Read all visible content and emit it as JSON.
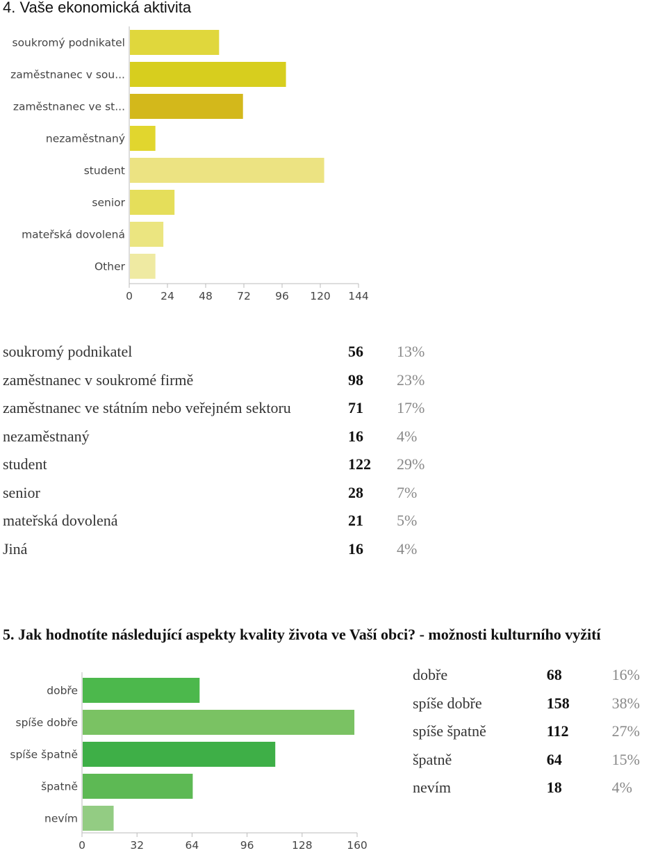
{
  "q4": {
    "title": "4. Vaše ekonomická aktivita",
    "stats": [
      {
        "label": "soukromý podnikatel",
        "count": "56",
        "percent": "13%"
      },
      {
        "label": "zaměstnanec v soukromé firmě",
        "count": "98",
        "percent": "23%"
      },
      {
        "label": "zaměstnanec ve státním nebo veřejném sektoru",
        "count": "71",
        "percent": "17%"
      },
      {
        "label": "nezaměstnaný",
        "count": "16",
        "percent": "4%"
      },
      {
        "label": "student",
        "count": "122",
        "percent": "29%"
      },
      {
        "label": "senior",
        "count": "28",
        "percent": "7%"
      },
      {
        "label": "mateřská dovolená",
        "count": "21",
        "percent": "5%"
      },
      {
        "label": "Jiná",
        "count": "16",
        "percent": "4%"
      }
    ]
  },
  "q5": {
    "title": "5. Jak hodnotíte následující aspekty kvality života ve Vaší obci? - možnosti kulturního vyžití",
    "stats": [
      {
        "label": "dobře",
        "count": "68",
        "percent": "16%"
      },
      {
        "label": "spíše dobře",
        "count": "158",
        "percent": "38%"
      },
      {
        "label": "spíše špatně",
        "count": "112",
        "percent": "27%"
      },
      {
        "label": "špatně",
        "count": "64",
        "percent": "15%"
      },
      {
        "label": "nevím",
        "count": "18",
        "percent": "4%"
      }
    ]
  },
  "chart_data": [
    {
      "type": "bar",
      "orientation": "horizontal",
      "categories": [
        "soukromý podnikatel",
        "zaměstnanec v sou...",
        "zaměstnanec ve st...",
        "nezaměstnaný",
        "student",
        "senior",
        "mateřská dovolená",
        "Other"
      ],
      "values": [
        56,
        98,
        71,
        16,
        122,
        28,
        21,
        16
      ],
      "colors": [
        "#e0d73c",
        "#d7ce1e",
        "#d3b81b",
        "#e1d62e",
        "#ece382",
        "#e5de5a",
        "#ebe580",
        "#efeaa2"
      ],
      "xlim": [
        0,
        144
      ],
      "xticks": [
        "0",
        "24",
        "48",
        "72",
        "96",
        "120",
        "144"
      ],
      "grid": false
    },
    {
      "type": "bar",
      "orientation": "horizontal",
      "categories": [
        "dobře",
        "spíše dobře",
        "spíše špatně",
        "špatně",
        "nevím"
      ],
      "values": [
        68,
        158,
        112,
        64,
        18
      ],
      "colors": [
        "#4cb84c",
        "#7ac263",
        "#3eaf47",
        "#5db954",
        "#93cc83"
      ],
      "xlim": [
        0,
        160
      ],
      "xticks": [
        "0",
        "32",
        "64",
        "96",
        "128",
        "160"
      ],
      "grid": false
    }
  ]
}
